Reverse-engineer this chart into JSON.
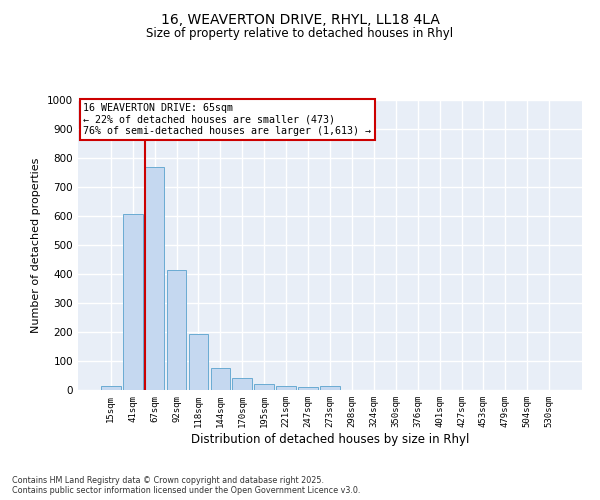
{
  "title_line1": "16, WEAVERTON DRIVE, RHYL, LL18 4LA",
  "title_line2": "Size of property relative to detached houses in Rhyl",
  "xlabel": "Distribution of detached houses by size in Rhyl",
  "ylabel": "Number of detached properties",
  "bar_labels": [
    "15sqm",
    "41sqm",
    "67sqm",
    "92sqm",
    "118sqm",
    "144sqm",
    "170sqm",
    "195sqm",
    "221sqm",
    "247sqm",
    "273sqm",
    "298sqm",
    "324sqm",
    "350sqm",
    "376sqm",
    "401sqm",
    "427sqm",
    "453sqm",
    "479sqm",
    "504sqm",
    "530sqm"
  ],
  "bar_values": [
    15,
    607,
    770,
    413,
    193,
    77,
    40,
    20,
    15,
    12,
    13,
    0,
    0,
    0,
    0,
    0,
    0,
    0,
    0,
    0,
    0
  ],
  "bar_color": "#c5d8f0",
  "bar_edge_color": "#6aabd2",
  "vline_color": "#cc0000",
  "annotation_text": "16 WEAVERTON DRIVE: 65sqm\n← 22% of detached houses are smaller (473)\n76% of semi-detached houses are larger (1,613) →",
  "annotation_box_color": "#ffffff",
  "annotation_box_edge": "#cc0000",
  "ylim": [
    0,
    1000
  ],
  "yticks": [
    0,
    100,
    200,
    300,
    400,
    500,
    600,
    700,
    800,
    900,
    1000
  ],
  "background_color": "#ffffff",
  "plot_bg_color": "#e8eef7",
  "grid_color": "#ffffff",
  "footnote": "Contains HM Land Registry data © Crown copyright and database right 2025.\nContains public sector information licensed under the Open Government Licence v3.0."
}
